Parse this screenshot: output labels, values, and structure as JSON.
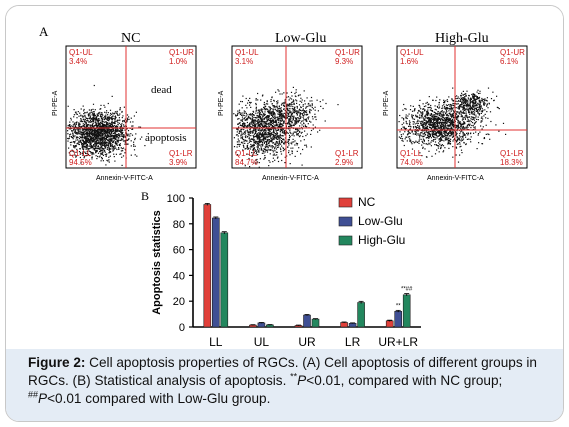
{
  "panel_a": {
    "label": "A",
    "plots": [
      {
        "title": "NC",
        "ul": "Q1-UL\n3.4%",
        "ur": "Q1-UR\n1.0%",
        "ll": "Q1-LL\n94.5%",
        "lr": "Q1-LR\n3.9%",
        "dead_label": "dead",
        "apoptosis_label": "apoptosis"
      },
      {
        "title": "Low-Glu",
        "ul": "Q1-UL\n3.1%",
        "ur": "Q1-UR\n9.3%",
        "ll": "Q1-LL\n84.7%",
        "lr": "Q1-LR\n2.9%"
      },
      {
        "title": "High-Glu",
        "ul": "Q1-UL\n1.6%",
        "ur": "Q1-UR\n6.1%",
        "ll": "Q1-LL\n74.0%",
        "lr": "Q1-LR\n18.3%"
      }
    ],
    "xlabel": "Annexin-V-FITC-A",
    "ylabel": "PI-PE-A"
  },
  "chart_data": {
    "type": "bar",
    "panel_label": "B",
    "categories": [
      "LL",
      "UL",
      "UR",
      "LR",
      "UR+LR"
    ],
    "series": [
      {
        "name": "NC",
        "color": "#e0403a",
        "values": [
          95,
          1.5,
          1.2,
          3.5,
          4.8
        ]
      },
      {
        "name": "Low-Glu",
        "color": "#3f4f94",
        "values": [
          84.5,
          3.2,
          9.2,
          2.9,
          12.2
        ]
      },
      {
        "name": "High-Glu",
        "color": "#23875e",
        "values": [
          73,
          1.6,
          6.1,
          19,
          25
        ]
      }
    ],
    "errors": [
      [
        0.8,
        0.3,
        0.3,
        0.4,
        0.5
      ],
      [
        0.8,
        0.3,
        0.5,
        0.3,
        0.7
      ],
      [
        0.9,
        0.3,
        0.4,
        0.9,
        0.9
      ]
    ],
    "annotations": [
      {
        "category": "UR+LR",
        "series": "Low-Glu",
        "text": "**"
      },
      {
        "category": "UR+LR",
        "series": "High-Glu",
        "text": "**##"
      }
    ],
    "ylabel": "Apoptosis statistics",
    "xlabel": "",
    "ylim": [
      0,
      100
    ],
    "yticks": [
      0,
      20,
      40,
      60,
      80,
      100
    ],
    "legend_position": "right"
  },
  "caption": {
    "label": "Figure 2:",
    "text_1": " Cell apoptosis properties of RGCs. (A) Cell apoptosis of different groups in RGCs. (B) Statistical analysis of apoptosis. ",
    "sig_1_mark": "**",
    "sig_1_p": "P",
    "sig_1_text": "<0.01, compared with NC group; ",
    "sig_2_mark": "##",
    "sig_2_p": "P",
    "sig_2_text": "<0.01 compared with Low-Glu group."
  }
}
